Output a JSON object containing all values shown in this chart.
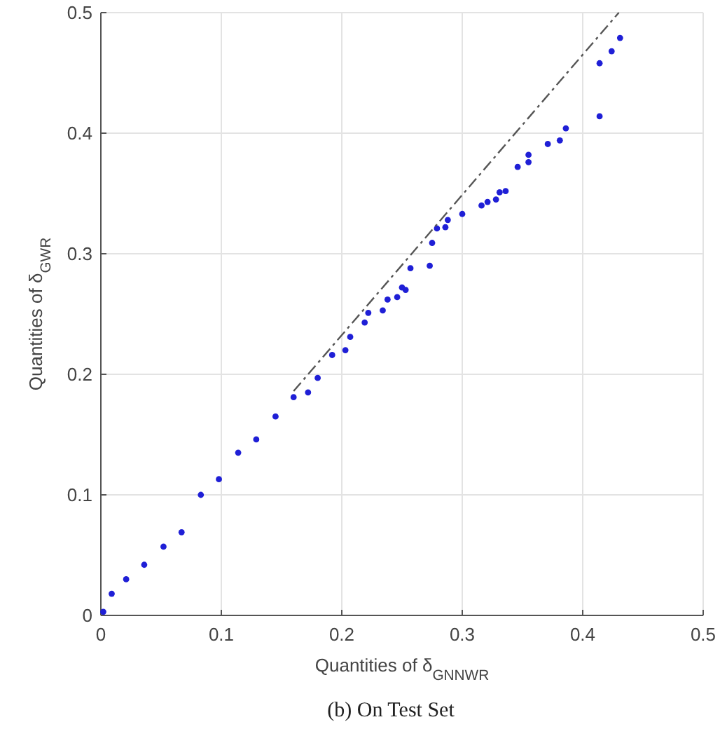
{
  "chart_data": {
    "type": "scatter",
    "xlabel": "Quantities of δ$_{GNNWR}$",
    "ylabel": "Quantities of δ$_{GWR}$",
    "annotations": [
      "(b) On Test Set"
    ],
    "xlim": [
      0,
      0.5
    ],
    "ylim": [
      0,
      0.5
    ],
    "xticks": [
      0,
      0.1,
      0.2,
      0.3,
      0.4,
      0.5
    ],
    "yticks": [
      0,
      0.1,
      0.2,
      0.3,
      0.4,
      0.5
    ],
    "grid": true,
    "marker": "circle",
    "series": [
      {
        "color": "#1f1fd6",
        "x": [
          0.002,
          0.009,
          0.021,
          0.036,
          0.052,
          0.067,
          0.083,
          0.098,
          0.114,
          0.129,
          0.145,
          0.16,
          0.172,
          0.18,
          0.192,
          0.203,
          0.207,
          0.219,
          0.222,
          0.234,
          0.238,
          0.246,
          0.25,
          0.253,
          0.257,
          0.273,
          0.275,
          0.279,
          0.286,
          0.288,
          0.3,
          0.316,
          0.321,
          0.328,
          0.331,
          0.336,
          0.346,
          0.355,
          0.355,
          0.371,
          0.381,
          0.386,
          0.414,
          0.414,
          0.424,
          0.431
        ],
        "values": [
          0.003,
          0.018,
          0.03,
          0.042,
          0.057,
          0.069,
          0.1,
          0.113,
          0.135,
          0.146,
          0.165,
          0.181,
          0.185,
          0.197,
          0.216,
          0.22,
          0.231,
          0.243,
          0.251,
          0.253,
          0.262,
          0.264,
          0.272,
          0.27,
          0.288,
          0.29,
          0.309,
          0.321,
          0.322,
          0.328,
          0.333,
          0.34,
          0.343,
          0.345,
          0.351,
          0.352,
          0.372,
          0.376,
          0.382,
          0.391,
          0.394,
          0.404,
          0.414,
          0.458,
          0.468,
          0.479
        ]
      },
      {
        "type": "line",
        "color": "#555555",
        "line_style": "dashed",
        "marker": "none",
        "x": [
          0.16,
          0.43
        ],
        "values": [
          0.186,
          0.5
        ]
      }
    ]
  }
}
